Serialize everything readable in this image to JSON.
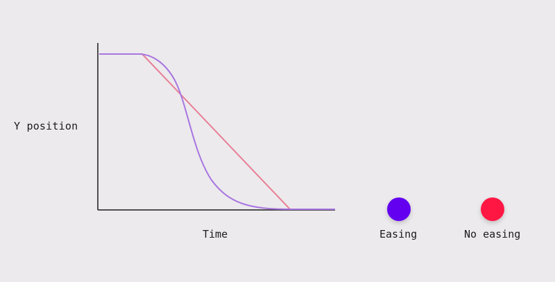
{
  "diagram": {
    "ylabel": "Y position",
    "xlabel": "Time",
    "axis_color": "#1b1b1b",
    "background": "#ECEAED"
  },
  "legend": {
    "easing": {
      "label": "Easing",
      "color": "#6400F0",
      "line_color": "#A875E0"
    },
    "no_easing": {
      "label": "No easing",
      "color": "#FF1744",
      "line_color": "#E87F95"
    }
  },
  "chart_data": {
    "type": "line",
    "xlabel": "Time",
    "ylabel": "Y position",
    "series": [
      {
        "name": "Easing",
        "x": [
          0,
          0.18,
          0.8,
          1
        ],
        "y": [
          1,
          1,
          0,
          0
        ],
        "curve": "ease-in-out"
      },
      {
        "name": "No easing",
        "x": [
          0,
          0.18,
          0.8,
          1
        ],
        "y": [
          1,
          1,
          0,
          0
        ],
        "curve": "linear"
      }
    ]
  }
}
